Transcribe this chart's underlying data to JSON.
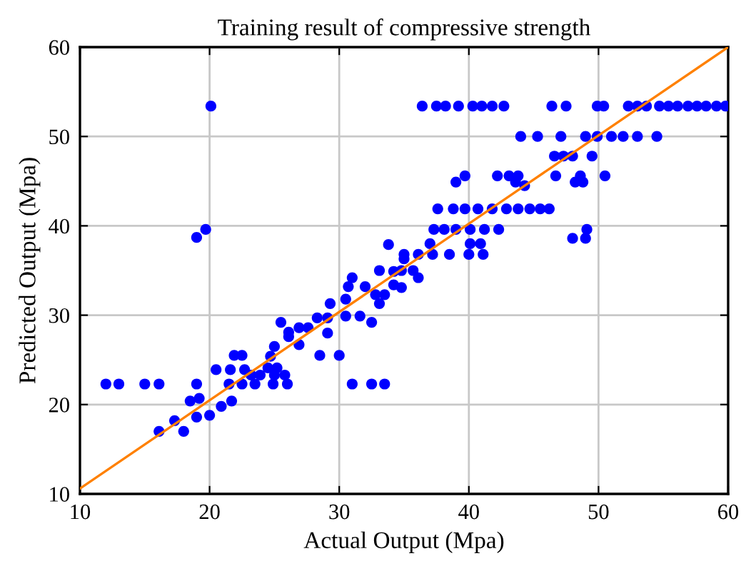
{
  "chart_data": {
    "type": "scatter",
    "title": "Training result of compressive strength",
    "xlabel": "Actual Output (Mpa)",
    "ylabel": "Predicted Output (Mpa)",
    "xlim": [
      10,
      60
    ],
    "ylim": [
      10,
      60
    ],
    "xticks": [
      10,
      20,
      30,
      40,
      50,
      60
    ],
    "yticks": [
      10,
      20,
      30,
      40,
      50,
      60
    ],
    "grid": true,
    "series": [
      {
        "marker": "circle",
        "color": "#0000ff",
        "x": [
          20.1,
          19.0,
          19.7,
          12.0,
          13.0,
          15.0,
          16.1,
          19.0,
          21.5,
          22.5,
          23.5,
          24.9,
          26.0,
          31.0,
          32.5,
          33.5,
          16.1,
          18.0,
          17.3,
          18.5,
          19.0,
          20.0,
          20.9,
          21.7,
          19.2,
          20.5,
          21.6,
          22.7,
          21.9,
          22.5,
          23.2,
          23.9,
          25.0,
          25.8,
          24.5,
          25.2,
          25.0,
          24.7,
          26.1,
          26.1,
          25.5,
          26.9,
          27.6,
          26.9,
          28.5,
          30.0,
          28.3,
          29.1,
          29.1,
          29.3,
          30.5,
          31.6,
          32.5,
          30.5,
          31.0,
          30.7,
          32.0,
          32.8,
          33.5,
          33.1,
          34.2,
          35.0,
          33.8,
          34.2,
          33.1,
          36.4,
          37.5,
          38.2,
          39.2,
          40.3,
          41.0,
          41.8,
          42.7,
          46.4,
          47.5,
          49.9,
          50.4,
          52.3,
          53.0,
          53.7,
          54.7,
          55.4,
          56.1,
          56.9,
          57.6,
          58.3,
          59.1,
          59.8,
          44.0,
          45.3,
          47.1,
          49.0,
          49.9,
          51.0,
          51.9,
          53.0,
          54.5,
          46.6,
          47.3,
          48.0,
          49.5,
          39.7,
          42.2,
          43.1,
          43.8,
          46.7,
          48.6,
          50.5,
          39.0,
          43.6,
          48.2,
          48.8,
          44.3,
          37.6,
          38.8,
          39.7,
          40.7,
          41.8,
          42.9,
          43.8,
          44.7,
          45.5,
          46.2,
          37.3,
          38.1,
          39.0,
          40.1,
          41.2,
          42.3,
          49.1,
          48.0,
          49.0,
          35.0,
          36.1,
          37.2,
          38.5,
          40.0,
          41.1,
          37.0,
          40.1,
          40.9,
          34.8,
          35.7,
          36.1,
          34.8
        ],
        "values": [
          53.4,
          38.7,
          39.6,
          22.3,
          22.3,
          22.3,
          22.3,
          22.3,
          22.3,
          22.3,
          22.3,
          22.3,
          22.3,
          22.3,
          22.3,
          22.3,
          17.0,
          17.0,
          18.2,
          20.4,
          18.6,
          18.8,
          19.8,
          20.4,
          20.7,
          23.9,
          23.9,
          23.9,
          25.5,
          25.5,
          23.3,
          23.3,
          23.3,
          23.3,
          24.1,
          24.1,
          26.5,
          25.4,
          28.1,
          27.6,
          29.2,
          28.6,
          28.6,
          26.7,
          25.5,
          25.5,
          29.7,
          29.7,
          28.0,
          31.3,
          29.9,
          29.9,
          29.2,
          31.8,
          34.2,
          33.2,
          33.2,
          32.3,
          32.3,
          35.0,
          34.9,
          36.3,
          37.9,
          33.4,
          31.3,
          53.4,
          53.4,
          53.4,
          53.4,
          53.4,
          53.4,
          53.4,
          53.4,
          53.4,
          53.4,
          53.4,
          53.4,
          53.4,
          53.4,
          53.4,
          53.4,
          53.4,
          53.4,
          53.4,
          53.4,
          53.4,
          53.4,
          53.4,
          50.0,
          50.0,
          50.0,
          50.0,
          50.0,
          50.0,
          50.0,
          50.0,
          50.0,
          47.8,
          47.8,
          47.8,
          47.8,
          45.6,
          45.6,
          45.6,
          45.6,
          45.6,
          45.6,
          45.6,
          44.9,
          44.9,
          44.9,
          44.9,
          44.5,
          41.9,
          41.9,
          41.9,
          41.9,
          41.9,
          41.9,
          41.9,
          41.9,
          41.9,
          41.9,
          39.6,
          39.6,
          39.6,
          39.6,
          39.6,
          39.6,
          39.6,
          38.6,
          38.6,
          36.8,
          36.8,
          36.8,
          36.8,
          36.8,
          36.8,
          38.0,
          38.0,
          38.0,
          35.0,
          35.0,
          34.2,
          33.1
        ]
      },
      {
        "type": "line",
        "color": "#ff8000",
        "x": [
          10,
          60
        ],
        "values": [
          10.6,
          60
        ]
      }
    ]
  }
}
